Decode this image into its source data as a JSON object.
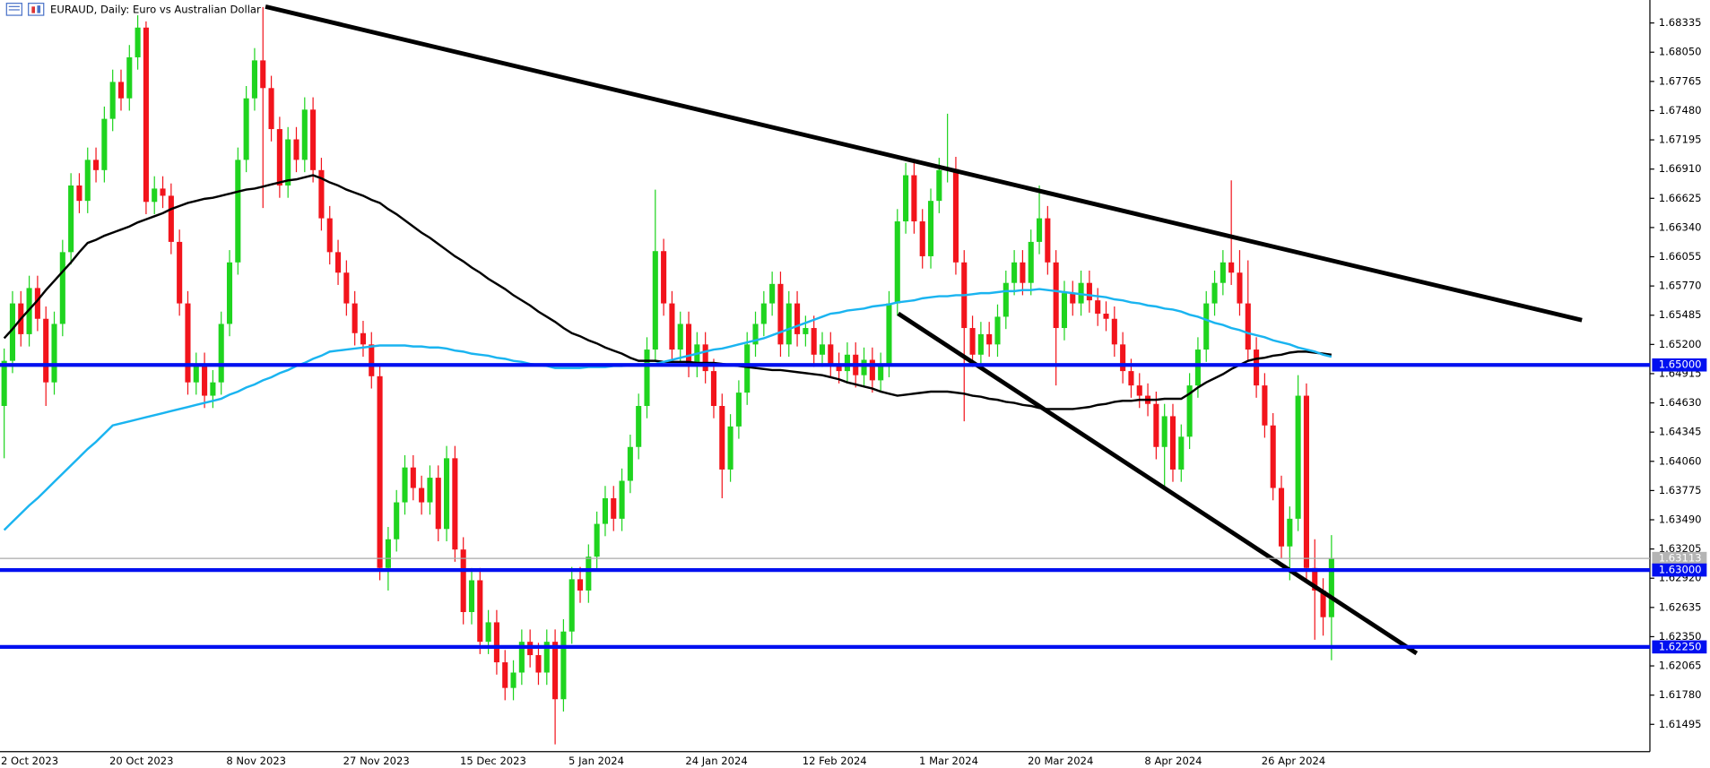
{
  "chart_data": {
    "type": "candlestick",
    "title": "EURAUD, Daily:  Euro vs Australian Dollar",
    "categories": [
      "2 Oct 2023",
      null,
      null,
      null,
      null,
      null,
      null,
      null,
      null,
      null,
      null,
      null,
      null,
      "20 Oct 2023",
      null,
      null,
      null,
      null,
      null,
      null,
      null,
      null,
      null,
      null,
      null,
      null,
      null,
      "8 Nov 2023",
      null,
      null,
      null,
      null,
      null,
      null,
      null,
      null,
      null,
      null,
      null,
      null,
      null,
      "27 Nov 2023",
      null,
      null,
      null,
      null,
      null,
      null,
      null,
      null,
      null,
      null,
      null,
      null,
      null,
      "15 Dec 2023",
      null,
      null,
      null,
      null,
      null,
      null,
      null,
      null,
      null,
      null,
      null,
      null,
      "5 Jan 2024",
      null,
      null,
      null,
      null,
      null,
      null,
      null,
      null,
      null,
      null,
      null,
      null,
      null,
      "24 Jan 2024",
      null,
      null,
      null,
      null,
      null,
      null,
      null,
      null,
      null,
      null,
      null,
      null,
      null,
      "12 Feb 2024",
      null,
      null,
      null,
      null,
      null,
      null,
      null,
      null,
      null,
      null,
      null,
      null,
      null,
      "1 Mar 2024",
      null,
      null,
      null,
      null,
      null,
      null,
      null,
      null,
      null,
      null,
      null,
      null,
      "20 Mar 2024",
      null,
      null,
      null,
      null,
      null,
      null,
      null,
      null,
      null,
      null,
      null,
      null,
      null,
      "8 Apr 2024",
      null,
      null,
      null,
      null,
      null,
      null,
      null,
      null,
      null,
      null,
      null,
      null,
      null,
      "26 Apr 2024",
      null,
      null,
      null,
      null,
      null,
      null,
      null,
      null
    ],
    "open": [
      1.646,
      1.6504,
      1.656,
      1.653,
      1.6575,
      1.6545,
      1.6483,
      1.654,
      1.661,
      1.6675,
      1.666,
      1.67,
      1.669,
      1.674,
      1.6776,
      1.676,
      1.68,
      1.6829,
      1.6659,
      1.6672,
      1.6665,
      1.662,
      1.656,
      1.6483,
      1.65,
      1.647,
      1.6483,
      1.654,
      1.66,
      1.67,
      1.676,
      1.6797,
      1.677,
      1.673,
      1.6675,
      1.672,
      1.67,
      1.6749,
      1.669,
      1.6643,
      1.661,
      1.659,
      1.656,
      1.6531,
      1.652,
      1.6489,
      1.6302,
      1.633,
      1.6366,
      1.64,
      1.638,
      1.6366,
      1.639,
      1.634,
      1.6409,
      1.632,
      1.6259,
      1.629,
      1.623,
      1.6249,
      1.621,
      1.6185,
      1.62,
      1.623,
      1.6217,
      1.62,
      1.623,
      1.6174,
      1.624,
      1.6291,
      1.628,
      1.6313,
      1.6345,
      1.637,
      1.635,
      1.6387,
      1.642,
      1.646,
      1.6515,
      1.6611,
      1.656,
      1.6515,
      1.654,
      1.65,
      1.652,
      1.6494,
      1.646,
      1.6398,
      1.644,
      1.6473,
      1.652,
      1.654,
      1.656,
      1.6579,
      1.652,
      1.656,
      1.653,
      1.6536,
      1.651,
      1.652,
      1.65,
      1.6494,
      1.651,
      1.649,
      1.6505,
      1.6485,
      1.65,
      1.656,
      1.664,
      1.6685,
      1.664,
      1.6606,
      1.666,
      1.669,
      1.6691,
      1.66,
      1.6536,
      1.651,
      1.653,
      1.652,
      1.6547,
      1.658,
      1.66,
      1.658,
      1.662,
      1.6643,
      1.66,
      1.6536,
      1.657,
      1.656,
      1.658,
      1.6563,
      1.655,
      1.6545,
      1.652,
      1.6494,
      1.648,
      1.647,
      1.6462,
      1.642,
      1.645,
      1.6398,
      1.643,
      1.648,
      1.6515,
      1.656,
      1.658,
      1.66,
      1.659,
      1.656,
      1.6515,
      1.648,
      1.6441,
      1.638,
      1.6323,
      1.635,
      1.647,
      1.6302,
      1.628,
      1.6254
    ],
    "high": [
      1.6516,
      1.6572,
      1.6572,
      1.6587,
      1.6587,
      1.6557,
      1.6552,
      1.6622,
      1.6687,
      1.6687,
      1.6712,
      1.6712,
      1.6752,
      1.6788,
      1.6788,
      1.6812,
      1.6841,
      1.6835,
      1.6684,
      1.6684,
      1.6677,
      1.6632,
      1.6572,
      1.6512,
      1.6512,
      1.6495,
      1.6552,
      1.6612,
      1.6712,
      1.6772,
      1.6809,
      1.6849,
      1.6782,
      1.6742,
      1.6732,
      1.6732,
      1.6761,
      1.6761,
      1.6702,
      1.6655,
      1.6622,
      1.6602,
      1.6572,
      1.6543,
      1.6532,
      1.6501,
      1.6342,
      1.6378,
      1.6412,
      1.6412,
      1.6392,
      1.6402,
      1.6402,
      1.6421,
      1.6421,
      1.6332,
      1.6302,
      1.6302,
      1.6261,
      1.6261,
      1.6222,
      1.6212,
      1.6242,
      1.6242,
      1.6229,
      1.6242,
      1.6242,
      1.6252,
      1.6303,
      1.6303,
      1.6325,
      1.6357,
      1.6382,
      1.6382,
      1.6399,
      1.6432,
      1.6472,
      1.6527,
      1.6671,
      1.6623,
      1.6572,
      1.6552,
      1.6552,
      1.6532,
      1.6532,
      1.6506,
      1.6472,
      1.6452,
      1.6485,
      1.6532,
      1.6552,
      1.6572,
      1.6591,
      1.6591,
      1.6572,
      1.6572,
      1.6548,
      1.6548,
      1.6532,
      1.6532,
      1.6512,
      1.6522,
      1.6522,
      1.6517,
      1.6517,
      1.6512,
      1.6572,
      1.6652,
      1.6697,
      1.6697,
      1.6652,
      1.6672,
      1.6702,
      1.6745,
      1.6703,
      1.6612,
      1.6548,
      1.6542,
      1.6542,
      1.6559,
      1.6592,
      1.6612,
      1.6612,
      1.6632,
      1.6675,
      1.6655,
      1.6612,
      1.6582,
      1.6582,
      1.6592,
      1.6592,
      1.6575,
      1.6562,
      1.6557,
      1.6532,
      1.6506,
      1.6492,
      1.6482,
      1.6474,
      1.6462,
      1.6462,
      1.6442,
      1.6492,
      1.6527,
      1.6572,
      1.6592,
      1.6612,
      1.668,
      1.6612,
      1.6602,
      1.6527,
      1.6492,
      1.6453,
      1.6392,
      1.6362,
      1.649,
      1.6482,
      1.633,
      1.6292,
      1.6334
    ],
    "low": [
      1.6409,
      1.6492,
      1.6518,
      1.6518,
      1.6533,
      1.646,
      1.6471,
      1.6528,
      1.6598,
      1.6648,
      1.6648,
      1.6678,
      1.6678,
      1.6728,
      1.6748,
      1.6748,
      1.6788,
      1.6647,
      1.6647,
      1.6653,
      1.6608,
      1.6548,
      1.6471,
      1.6471,
      1.6458,
      1.6458,
      1.6471,
      1.6528,
      1.6588,
      1.6688,
      1.6748,
      1.6653,
      1.6718,
      1.6663,
      1.6663,
      1.6688,
      1.6688,
      1.6678,
      1.6631,
      1.6598,
      1.6578,
      1.6548,
      1.6519,
      1.6508,
      1.6477,
      1.629,
      1.628,
      1.6318,
      1.6354,
      1.6368,
      1.6354,
      1.6354,
      1.6328,
      1.6328,
      1.6308,
      1.6247,
      1.6247,
      1.6218,
      1.6218,
      1.6198,
      1.6173,
      1.6173,
      1.6188,
      1.6205,
      1.6188,
      1.6188,
      1.613,
      1.6162,
      1.6228,
      1.6268,
      1.6268,
      1.6301,
      1.6333,
      1.6338,
      1.6338,
      1.6375,
      1.6408,
      1.6448,
      1.6503,
      1.6548,
      1.6503,
      1.6503,
      1.6488,
      1.6488,
      1.6482,
      1.6448,
      1.637,
      1.6386,
      1.6428,
      1.6461,
      1.6508,
      1.6528,
      1.6548,
      1.6508,
      1.6508,
      1.6518,
      1.6518,
      1.6498,
      1.6498,
      1.6488,
      1.6482,
      1.6482,
      1.6478,
      1.6478,
      1.6473,
      1.6473,
      1.6488,
      1.6548,
      1.6628,
      1.6628,
      1.6594,
      1.6594,
      1.6648,
      1.6678,
      1.6588,
      1.6445,
      1.6498,
      1.6498,
      1.6508,
      1.6508,
      1.6535,
      1.6568,
      1.6568,
      1.6568,
      1.6608,
      1.6588,
      1.648,
      1.6524,
      1.6548,
      1.6548,
      1.6551,
      1.6538,
      1.6533,
      1.6508,
      1.6482,
      1.6468,
      1.6458,
      1.645,
      1.6408,
      1.638,
      1.6386,
      1.6386,
      1.6418,
      1.6468,
      1.6503,
      1.6548,
      1.6568,
      1.6578,
      1.6548,
      1.6503,
      1.6468,
      1.6429,
      1.6368,
      1.6311,
      1.629,
      1.6338,
      1.629,
      1.6232,
      1.6236,
      1.6212
    ],
    "close": [
      1.6504,
      1.656,
      1.653,
      1.6575,
      1.6545,
      1.6483,
      1.654,
      1.661,
      1.6675,
      1.666,
      1.67,
      1.669,
      1.674,
      1.6776,
      1.676,
      1.68,
      1.6829,
      1.6659,
      1.6672,
      1.6665,
      1.662,
      1.656,
      1.6483,
      1.65,
      1.647,
      1.6483,
      1.654,
      1.66,
      1.67,
      1.676,
      1.6797,
      1.677,
      1.673,
      1.6675,
      1.672,
      1.67,
      1.6749,
      1.669,
      1.6643,
      1.661,
      1.659,
      1.656,
      1.6531,
      1.652,
      1.6489,
      1.6302,
      1.633,
      1.6366,
      1.64,
      1.638,
      1.6366,
      1.639,
      1.634,
      1.6409,
      1.632,
      1.6259,
      1.629,
      1.623,
      1.6249,
      1.621,
      1.6185,
      1.62,
      1.623,
      1.6217,
      1.62,
      1.623,
      1.6174,
      1.624,
      1.6291,
      1.628,
      1.6313,
      1.6345,
      1.637,
      1.635,
      1.6387,
      1.642,
      1.646,
      1.6515,
      1.6611,
      1.656,
      1.6515,
      1.654,
      1.65,
      1.652,
      1.6494,
      1.646,
      1.6398,
      1.644,
      1.6473,
      1.652,
      1.654,
      1.656,
      1.6579,
      1.652,
      1.656,
      1.653,
      1.6536,
      1.651,
      1.652,
      1.65,
      1.6494,
      1.651,
      1.649,
      1.6505,
      1.6485,
      1.65,
      1.656,
      1.664,
      1.6685,
      1.664,
      1.6606,
      1.666,
      1.669,
      1.6691,
      1.66,
      1.6536,
      1.651,
      1.653,
      1.652,
      1.6547,
      1.658,
      1.66,
      1.658,
      1.662,
      1.6643,
      1.66,
      1.6536,
      1.657,
      1.656,
      1.658,
      1.6563,
      1.655,
      1.6545,
      1.652,
      1.6494,
      1.648,
      1.647,
      1.6462,
      1.642,
      1.645,
      1.6398,
      1.643,
      1.648,
      1.6515,
      1.656,
      1.658,
      1.66,
      1.659,
      1.656,
      1.6515,
      1.648,
      1.6441,
      1.638,
      1.6323,
      1.635,
      1.647,
      1.6302,
      1.628,
      1.6254,
      1.63113
    ],
    "up_color": "#1fd41f",
    "down_color": "#f2141c",
    "lines": [
      {
        "color": "#000000",
        "values": [
          1.6526,
          1.6535,
          1.6545,
          1.6554,
          1.6563,
          1.6573,
          1.6582,
          1.6591,
          1.66,
          1.661,
          1.6619,
          1.6622,
          1.6626,
          1.6629,
          1.6632,
          1.6635,
          1.6639,
          1.6642,
          1.6645,
          1.6648,
          1.6652,
          1.6655,
          1.6658,
          1.666,
          1.6662,
          1.6663,
          1.6665,
          1.6667,
          1.6669,
          1.6671,
          1.6672,
          1.6674,
          1.6676,
          1.6678,
          1.668,
          1.6681,
          1.6683,
          1.6685,
          1.6682,
          1.6678,
          1.6675,
          1.6671,
          1.6668,
          1.6665,
          1.6661,
          1.6658,
          1.6652,
          1.6647,
          1.6641,
          1.6635,
          1.6629,
          1.6624,
          1.6618,
          1.6612,
          1.6606,
          1.6601,
          1.6595,
          1.659,
          1.6584,
          1.6579,
          1.6574,
          1.6568,
          1.6563,
          1.6558,
          1.6552,
          1.6547,
          1.6542,
          1.6536,
          1.6531,
          1.6528,
          1.6524,
          1.6521,
          1.6517,
          1.6514,
          1.6511,
          1.6507,
          1.6504,
          1.6504,
          1.6504,
          1.6503,
          1.6503,
          1.6503,
          1.6503,
          1.6502,
          1.6502,
          1.6502,
          1.6501,
          1.65,
          1.6499,
          1.6498,
          1.6497,
          1.6496,
          1.6495,
          1.6495,
          1.6494,
          1.6493,
          1.6492,
          1.6491,
          1.649,
          1.6488,
          1.6486,
          1.6483,
          1.6481,
          1.6479,
          1.6477,
          1.6474,
          1.6472,
          1.647,
          1.6471,
          1.6472,
          1.6473,
          1.6474,
          1.6474,
          1.6474,
          1.6473,
          1.6472,
          1.647,
          1.6469,
          1.6467,
          1.6466,
          1.6464,
          1.6463,
          1.6461,
          1.646,
          1.6458,
          1.6457,
          1.6457,
          1.6457,
          1.6457,
          1.6458,
          1.6459,
          1.6461,
          1.6462,
          1.6464,
          1.6465,
          1.6465,
          1.6466,
          1.6466,
          1.6466,
          1.6467,
          1.6467,
          1.6467,
          1.6472,
          1.6478,
          1.6483,
          1.6487,
          1.6491,
          1.6496,
          1.65,
          1.6504,
          1.6506,
          1.6507,
          1.6509,
          1.651,
          1.6512,
          1.6513,
          1.6513,
          1.6512,
          1.6511,
          1.651
        ]
      },
      {
        "color": "#1ab4f0",
        "values": [
          1.6339,
          1.6347,
          1.6355,
          1.6363,
          1.637,
          1.6378,
          1.6386,
          1.6394,
          1.6402,
          1.641,
          1.6418,
          1.6425,
          1.6433,
          1.6441,
          1.6443,
          1.6445,
          1.6447,
          1.6449,
          1.6451,
          1.6453,
          1.6455,
          1.6457,
          1.6459,
          1.6461,
          1.6463,
          1.6465,
          1.6467,
          1.6471,
          1.6474,
          1.6478,
          1.6481,
          1.6485,
          1.6488,
          1.6492,
          1.6495,
          1.6499,
          1.6502,
          1.6506,
          1.6509,
          1.6513,
          1.6514,
          1.6515,
          1.6516,
          1.6517,
          1.6518,
          1.6519,
          1.6519,
          1.6519,
          1.6519,
          1.6518,
          1.6518,
          1.6517,
          1.6517,
          1.6516,
          1.6514,
          1.6513,
          1.6511,
          1.651,
          1.6509,
          1.6507,
          1.6506,
          1.6504,
          1.6503,
          1.6501,
          1.65,
          1.6499,
          1.6497,
          1.6497,
          1.6497,
          1.6497,
          1.6498,
          1.6498,
          1.6498,
          1.6499,
          1.6499,
          1.65,
          1.65,
          1.6501,
          1.6501,
          1.6503,
          1.6505,
          1.6507,
          1.6509,
          1.6511,
          1.6513,
          1.6515,
          1.6516,
          1.6518,
          1.652,
          1.6522,
          1.6524,
          1.6526,
          1.6529,
          1.6532,
          1.6535,
          1.6538,
          1.6541,
          1.6544,
          1.6547,
          1.655,
          1.6551,
          1.6553,
          1.6554,
          1.6555,
          1.6557,
          1.6558,
          1.6559,
          1.6561,
          1.6562,
          1.6563,
          1.6565,
          1.6566,
          1.6567,
          1.6567,
          1.6568,
          1.6568,
          1.6569,
          1.657,
          1.657,
          1.6571,
          1.6572,
          1.6572,
          1.6573,
          1.6573,
          1.6574,
          1.6573,
          1.6572,
          1.6571,
          1.657,
          1.6569,
          1.6568,
          1.6567,
          1.6566,
          1.6564,
          1.6563,
          1.6561,
          1.656,
          1.6558,
          1.6557,
          1.6555,
          1.6554,
          1.6552,
          1.6549,
          1.6547,
          1.6544,
          1.6541,
          1.6539,
          1.6536,
          1.6534,
          1.6531,
          1.6529,
          1.6527,
          1.6524,
          1.6522,
          1.652,
          1.6517,
          1.6515,
          1.6513,
          1.651,
          1.6508
        ]
      }
    ],
    "trendlines": [
      {
        "x": [
          31.3,
          189
        ],
        "y": [
          1.68495,
          1.65437
        ]
      },
      {
        "x": [
          107.1,
          169.2
        ],
        "y": [
          1.65501,
          1.62187
        ]
      }
    ],
    "trendline_color": "#000000",
    "hlines": [
      {
        "value": 1.65,
        "label": "1.65000"
      },
      {
        "value": 1.63,
        "label": "1.63000"
      },
      {
        "value": 1.6225,
        "label": "1.62250"
      }
    ],
    "hline_color": "#0010f0",
    "current": {
      "value": 1.63113,
      "label": "1.63113"
    },
    "ylim": [
      1.61229,
      1.68559
    ],
    "yticks": [
      1.68335,
      {
        "value": 1.6805,
        "label": "1.68050"
      },
      1.67765,
      {
        "value": 1.6748,
        "label": "1.67480"
      },
      1.67195,
      {
        "value": 1.6691,
        "label": "1.66910"
      },
      1.66625,
      {
        "value": 1.6634,
        "label": "1.66340"
      },
      1.66055,
      {
        "value": 1.6577,
        "label": "1.65770"
      },
      1.65485,
      {
        "value": 1.652,
        "label": "1.65200"
      },
      1.64915,
      {
        "value": 1.6463,
        "label": "1.64630"
      },
      1.64345,
      {
        "value": 1.6406,
        "label": "1.64060"
      },
      1.63775,
      {
        "value": 1.6349,
        "label": "1.63490"
      },
      1.63205,
      {
        "value": 1.6292,
        "label": "1.62920"
      },
      1.62635,
      {
        "value": 1.6235,
        "label": "1.62350"
      },
      1.62065,
      {
        "value": 1.6178,
        "label": "1.61780"
      },
      1.61495
    ]
  }
}
